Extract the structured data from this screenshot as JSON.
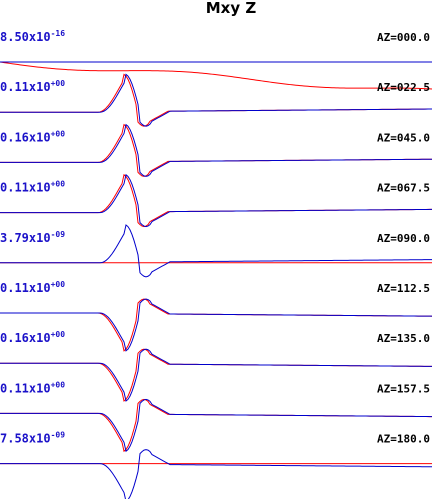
{
  "chart_data": {
    "type": "line",
    "title": "Mxy Z",
    "xlabel": "",
    "ylabel": "",
    "grid": false,
    "series_colors": {
      "blue": "#0000cc",
      "red": "#ff0000"
    },
    "traces": [
      {
        "az": "AZ=000.0",
        "amp_mantissa": "8.50x10",
        "amp_exp": "-16",
        "blue_shape": "flat",
        "red_shape": "drift"
      },
      {
        "az": "AZ=022.5",
        "amp_mantissa": "0.11x10",
        "amp_exp": "+00",
        "blue_shape": "up",
        "red_shape": "up"
      },
      {
        "az": "AZ=045.0",
        "amp_mantissa": "0.16x10",
        "amp_exp": "+00",
        "blue_shape": "up",
        "red_shape": "up"
      },
      {
        "az": "AZ=067.5",
        "amp_mantissa": "0.11x10",
        "amp_exp": "+00",
        "blue_shape": "up",
        "red_shape": "up"
      },
      {
        "az": "AZ=090.0",
        "amp_mantissa": "3.79x10",
        "amp_exp": "-09",
        "blue_shape": "up",
        "red_shape": "flat"
      },
      {
        "az": "AZ=112.5",
        "amp_mantissa": "0.11x10",
        "amp_exp": "+00",
        "blue_shape": "down",
        "red_shape": "down"
      },
      {
        "az": "AZ=135.0",
        "amp_mantissa": "0.16x10",
        "amp_exp": "+00",
        "blue_shape": "down",
        "red_shape": "down"
      },
      {
        "az": "AZ=157.5",
        "amp_mantissa": "0.11x10",
        "amp_exp": "+00",
        "blue_shape": "down",
        "red_shape": "down"
      },
      {
        "az": "AZ=180.0",
        "amp_mantissa": "7.58x10",
        "amp_exp": "-09",
        "blue_shape": "down",
        "red_shape": "flat"
      }
    ]
  }
}
